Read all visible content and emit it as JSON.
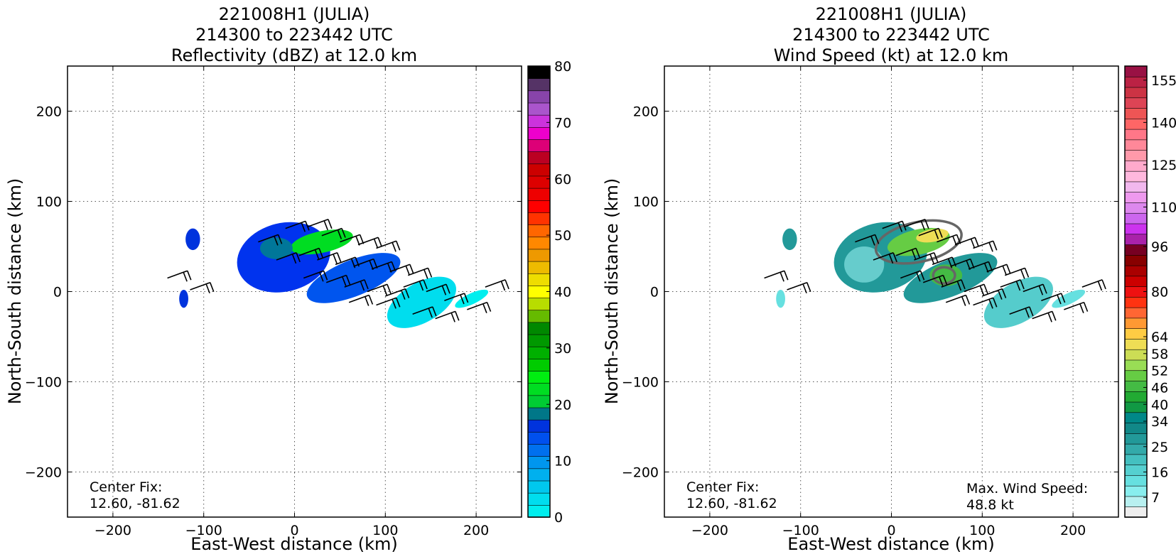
{
  "chart_data": [
    {
      "type": "heatmap",
      "title": [
        "221008H1 (JULIA)",
        "214300 to 223442 UTC",
        "Reflectivity (dBZ) at 12.0 km"
      ],
      "xlabel": "East-West distance (km)",
      "ylabel": "North-South distance (km)",
      "xlim": [
        -250,
        250
      ],
      "ylim": [
        -250,
        250
      ],
      "xticks": [
        -200,
        -100,
        0,
        100,
        200
      ],
      "yticks": [
        -200,
        -100,
        0,
        100,
        200
      ],
      "grid": true,
      "annotations": {
        "center_fix_label": "Center Fix:",
        "center_fix_value": "12.60, -81.62"
      },
      "colorbar": {
        "label": "",
        "range": [
          0,
          80
        ],
        "ticks": [
          0,
          10,
          20,
          30,
          40,
          50,
          60,
          70,
          80
        ],
        "colors": [
          "#00eeee",
          "#00ddee",
          "#00c8ee",
          "#00b0ee",
          "#0096ee",
          "#0070ee",
          "#0050ee",
          "#0033dd",
          "#007788",
          "#00cc33",
          "#00dd22",
          "#00ee11",
          "#00cc00",
          "#00b000",
          "#009900",
          "#008800",
          "#66bb00",
          "#b8dd00",
          "#ffff00",
          "#eedd00",
          "#eebb00",
          "#ee9900",
          "#ff8800",
          "#ff6600",
          "#ff3300",
          "#ff0000",
          "#ee0000",
          "#dd0000",
          "#cc0000",
          "#bb0022",
          "#dd0077",
          "#ee00cc",
          "#cc33dd",
          "#aa55cc",
          "#8844aa",
          "#553366",
          "#000000"
        ]
      },
      "regions": [
        {
          "center": [
            -12,
            38
          ],
          "radii": [
            52,
            38
          ],
          "rotation": -14,
          "color": "#0033ee"
        },
        {
          "center": [
            65,
            15
          ],
          "radii": [
            55,
            20
          ],
          "rotation": -22,
          "color": "#0055ee"
        },
        {
          "center": [
            140,
            -12
          ],
          "radii": [
            42,
            22
          ],
          "rotation": -30,
          "color": "#00ddee"
        },
        {
          "center": [
            30,
            55
          ],
          "radii": [
            35,
            12
          ],
          "rotation": -12,
          "color": "#00dd22"
        },
        {
          "center": [
            -20,
            48
          ],
          "radii": [
            18,
            12
          ],
          "rotation": 0,
          "color": "#007799"
        },
        {
          "center": [
            195,
            -8
          ],
          "radii": [
            20,
            6
          ],
          "rotation": -25,
          "color": "#00eeee"
        },
        {
          "center": [
            -112,
            58
          ],
          "radii": [
            8,
            12
          ],
          "rotation": 0,
          "color": "#0033dd"
        },
        {
          "center": [
            -122,
            -8
          ],
          "radii": [
            5,
            10
          ],
          "rotation": 0,
          "color": "#0033dd"
        }
      ],
      "barbs": [
        [
          -140,
          15
        ],
        [
          -115,
          2
        ],
        [
          -40,
          55
        ],
        [
          -10,
          70
        ],
        [
          15,
          72
        ],
        [
          30,
          62
        ],
        [
          50,
          55
        ],
        [
          70,
          52
        ],
        [
          90,
          48
        ],
        [
          -20,
          35
        ],
        [
          5,
          40
        ],
        [
          25,
          35
        ],
        [
          45,
          30
        ],
        [
          65,
          28
        ],
        [
          85,
          25
        ],
        [
          105,
          22
        ],
        [
          125,
          18
        ],
        [
          10,
          15
        ],
        [
          35,
          10
        ],
        [
          55,
          5
        ],
        [
          80,
          0
        ],
        [
          100,
          -5
        ],
        [
          120,
          5
        ],
        [
          145,
          0
        ],
        [
          165,
          -10
        ],
        [
          60,
          -12
        ],
        [
          90,
          -15
        ],
        [
          130,
          -25
        ],
        [
          155,
          -30
        ],
        [
          190,
          -20
        ],
        [
          210,
          5
        ]
      ]
    },
    {
      "type": "heatmap",
      "title": [
        "221008H1 (JULIA)",
        "214300 to 223442 UTC",
        "Wind Speed (kt) at 12.0 km"
      ],
      "xlabel": "East-West distance (km)",
      "ylabel": "North-South distance (km)",
      "xlim": [
        -250,
        250
      ],
      "ylim": [
        -250,
        250
      ],
      "xticks": [
        -200,
        -100,
        0,
        100,
        200
      ],
      "yticks": [
        -200,
        -100,
        0,
        100,
        200
      ],
      "grid": true,
      "annotations": {
        "center_fix_label": "Center Fix:",
        "center_fix_value": "12.60, -81.62",
        "max_wind_label": "Max. Wind Speed:",
        "max_wind_value": "48.8 kt"
      },
      "colorbar": {
        "label": "",
        "range": [
          0,
          160
        ],
        "ticks": [
          7,
          16,
          25,
          34,
          40,
          46,
          52,
          58,
          64,
          80,
          96,
          110,
          125,
          140,
          155
        ],
        "colors": [
          "#eeeeee",
          "#b8f0f0",
          "#88eeee",
          "#66e0e0",
          "#55d0d0",
          "#44c0c0",
          "#33aaaa",
          "#229999",
          "#118888",
          "#008888",
          "#119944",
          "#22aa33",
          "#44bb44",
          "#66cc44",
          "#99dd55",
          "#ccdd55",
          "#eedd55",
          "#ffcc44",
          "#ff9933",
          "#ff6633",
          "#ff3311",
          "#ee1111",
          "#cc0000",
          "#aa0000",
          "#880000",
          "#770022",
          "#aa22aa",
          "#cc33ee",
          "#cc66ee",
          "#dd88ee",
          "#ee99ee",
          "#f2b8ee",
          "#ffb8dd",
          "#ffaacc",
          "#ff99aa",
          "#ff8899",
          "#ff7788",
          "#ff6666",
          "#ee5555",
          "#dd4455",
          "#cc3344",
          "#bb2244",
          "#991144"
        ]
      },
      "regions": [
        {
          "center": [
            -12,
            38
          ],
          "radii": [
            52,
            38
          ],
          "rotation": -14,
          "color": "#229999"
        },
        {
          "center": [
            65,
            15
          ],
          "radii": [
            55,
            20
          ],
          "rotation": -22,
          "color": "#229999"
        },
        {
          "center": [
            140,
            -12
          ],
          "radii": [
            42,
            22
          ],
          "rotation": -30,
          "color": "#55cccc"
        },
        {
          "center": [
            -30,
            30
          ],
          "radii": [
            22,
            20
          ],
          "rotation": 0,
          "color": "#66cccc"
        },
        {
          "center": [
            30,
            55
          ],
          "radii": [
            35,
            14
          ],
          "rotation": -12,
          "color": "#66cc44"
        },
        {
          "center": [
            45,
            62
          ],
          "radii": [
            18,
            7
          ],
          "rotation": -10,
          "color": "#eedd55"
        },
        {
          "center": [
            60,
            18
          ],
          "radii": [
            18,
            12
          ],
          "rotation": 0,
          "color": "#44bb44"
        },
        {
          "center": [
            195,
            -8
          ],
          "radii": [
            20,
            6
          ],
          "rotation": -25,
          "color": "#66e0e0"
        },
        {
          "center": [
            -112,
            58
          ],
          "radii": [
            8,
            12
          ],
          "rotation": 0,
          "color": "#229999"
        },
        {
          "center": [
            -122,
            -8
          ],
          "radii": [
            5,
            10
          ],
          "rotation": 0,
          "color": "#66e0e0"
        }
      ],
      "contours": [
        {
          "center": [
            30,
            55
          ],
          "radii": [
            48,
            22
          ],
          "rotation": -12
        },
        {
          "center": [
            58,
            18
          ],
          "radii": [
            12,
            9
          ],
          "rotation": 0
        }
      ],
      "barbs": [
        [
          -140,
          15
        ],
        [
          -115,
          2
        ],
        [
          -40,
          55
        ],
        [
          -10,
          70
        ],
        [
          15,
          72
        ],
        [
          30,
          62
        ],
        [
          50,
          55
        ],
        [
          70,
          52
        ],
        [
          90,
          48
        ],
        [
          -20,
          35
        ],
        [
          5,
          40
        ],
        [
          25,
          35
        ],
        [
          45,
          30
        ],
        [
          65,
          28
        ],
        [
          85,
          25
        ],
        [
          105,
          22
        ],
        [
          125,
          18
        ],
        [
          10,
          15
        ],
        [
          35,
          10
        ],
        [
          55,
          5
        ],
        [
          80,
          0
        ],
        [
          100,
          -5
        ],
        [
          120,
          5
        ],
        [
          145,
          0
        ],
        [
          165,
          -10
        ],
        [
          60,
          -12
        ],
        [
          90,
          -15
        ],
        [
          130,
          -25
        ],
        [
          155,
          -30
        ],
        [
          190,
          -20
        ],
        [
          210,
          5
        ]
      ]
    }
  ]
}
